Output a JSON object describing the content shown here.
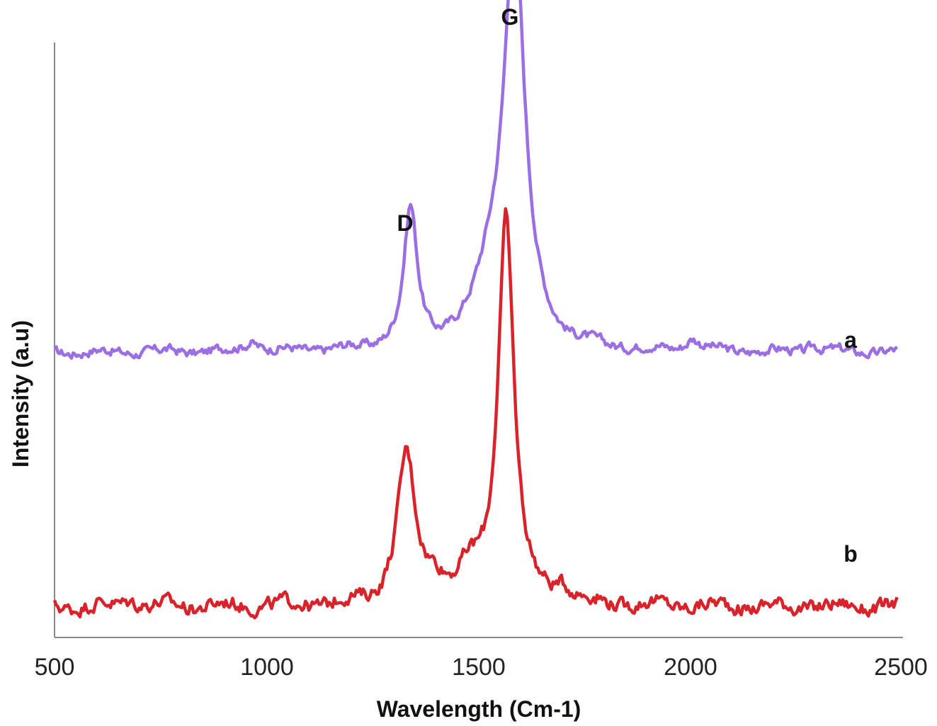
{
  "chart_data": {
    "type": "line",
    "title": "",
    "xlabel": "Wavelength (Cm-1)",
    "ylabel": "Intensity (a.u)",
    "xlim": [
      500,
      2500
    ],
    "xticks": [
      500,
      1000,
      1500,
      2000,
      2500
    ],
    "y_ticks_shown": false,
    "grid": false,
    "legend": "none",
    "series": [
      {
        "key": "a",
        "color": "#9b6fe3",
        "baseline": 0.55,
        "offset": 0.55,
        "peaks": [
          {
            "x": 1340,
            "height": 0.28,
            "width": 22
          },
          {
            "x": 1585,
            "height": 0.82,
            "width": 34
          },
          {
            "x": 1530,
            "height": 0.12,
            "width": 55
          },
          {
            "x": 965,
            "height": 0.02,
            "width": 25
          },
          {
            "x": 2005,
            "height": 0.025,
            "width": 22
          },
          {
            "x": 2290,
            "height": 0.015,
            "width": 18
          }
        ],
        "noise": 0.008
      },
      {
        "key": "b",
        "color": "#d9232b",
        "baseline": 0.03,
        "offset": 0.0,
        "peaks": [
          {
            "x": 1330,
            "height": 0.3,
            "width": 30
          },
          {
            "x": 1565,
            "height": 0.79,
            "width": 26
          },
          {
            "x": 1480,
            "height": 0.05,
            "width": 40
          },
          {
            "x": 1400,
            "height": 0.04,
            "width": 30
          },
          {
            "x": 1700,
            "height": 0.03,
            "width": 30
          },
          {
            "x": 680,
            "height": 0.015,
            "width": 25
          }
        ],
        "noise": 0.012
      }
    ],
    "annotations": [
      {
        "text": "G",
        "x": 1575,
        "y": 1.53
      },
      {
        "text": "D",
        "x": 1330,
        "y": 0.97
      },
      {
        "text": "a",
        "x": 2370,
        "y": 0.57
      },
      {
        "text": "b",
        "x": 2370,
        "y": 0.12
      }
    ]
  },
  "labels": {
    "xlabel": "Wavelength (Cm-1)",
    "ylabel": "Intensity (a.u)",
    "annot_g": "G",
    "annot_d": "D",
    "annot_a": "a",
    "annot_b": "b",
    "tick_500": "500",
    "tick_1000": "1000",
    "tick_1500": "1500",
    "tick_2000": "2000",
    "tick_2500": "2500"
  }
}
